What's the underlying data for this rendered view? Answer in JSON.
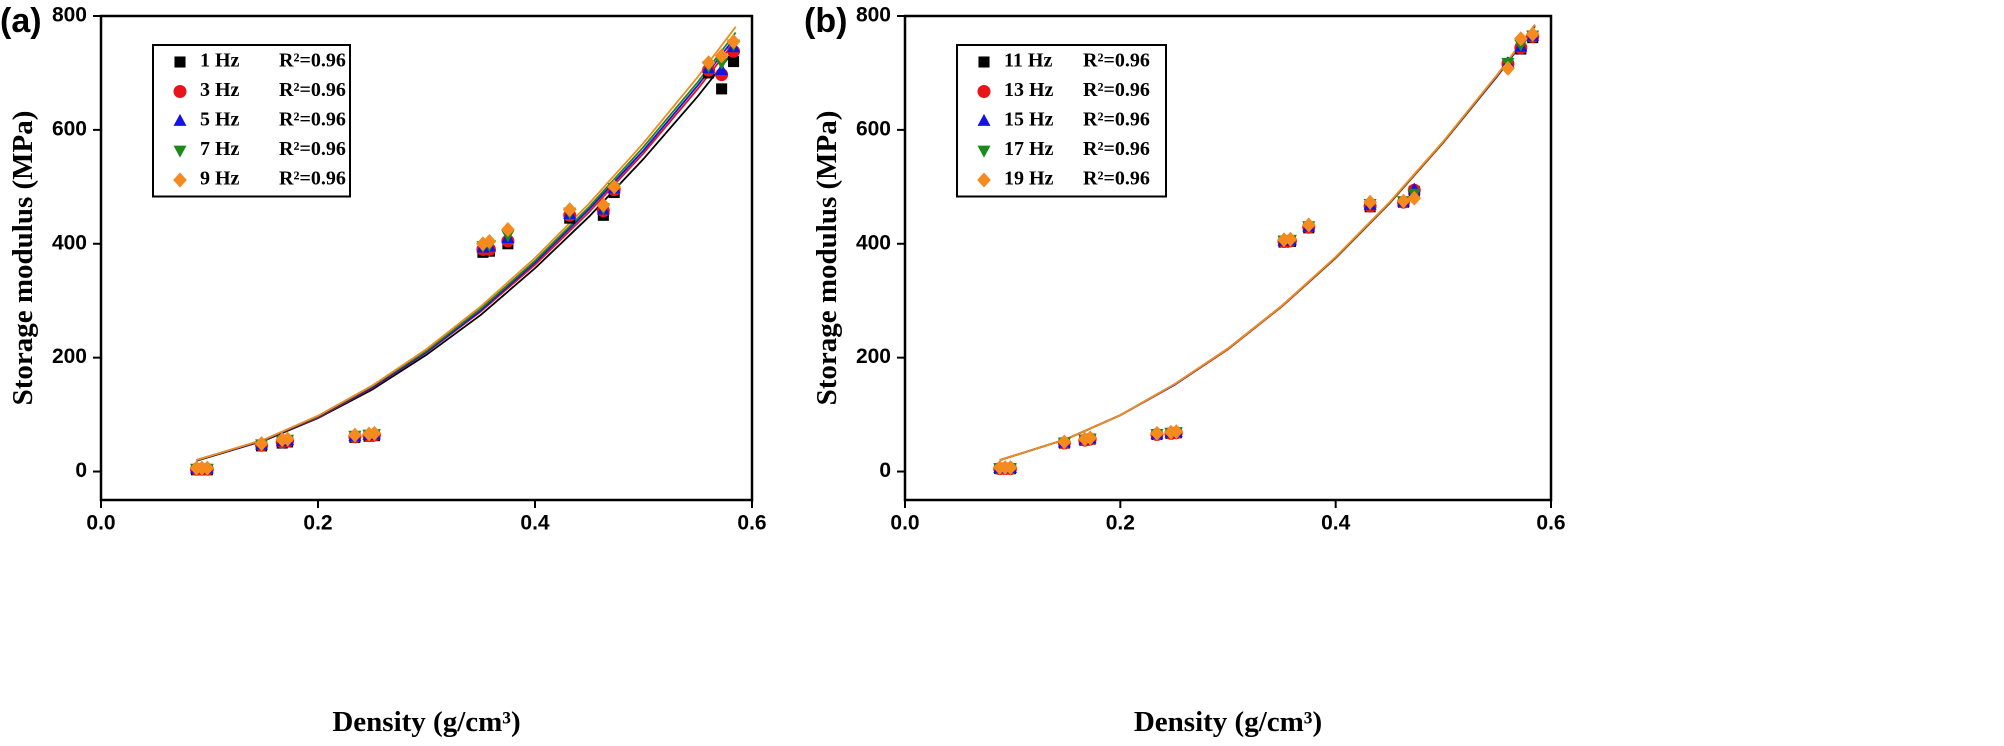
{
  "chart_data": [
    {
      "type": "scatter",
      "panel_label": "(a)",
      "x_label": "Density (g/cm³)",
      "y_label": "Storage modulus (MPa)",
      "xlim": [
        0,
        0.6
      ],
      "xticks": [
        {
          "value": 0,
          "label": "0.0"
        },
        0.2,
        0.4,
        0.6
      ],
      "ylim": [
        -50,
        800
      ],
      "yticks": [
        0,
        200,
        400,
        600,
        800
      ],
      "legend": "upper left",
      "x": [
        0.088,
        0.093,
        0.098,
        0.148,
        0.167,
        0.172,
        0.234,
        0.247,
        0.252,
        0.352,
        0.358,
        0.375,
        0.432,
        0.463,
        0.473,
        0.56,
        0.572,
        0.583
      ],
      "fit_x": [
        0.088,
        0.15,
        0.2,
        0.25,
        0.3,
        0.35,
        0.4,
        0.45,
        0.5,
        0.55,
        0.585
      ],
      "series": [
        {
          "name": "1 Hz",
          "fit_label": "R²=0.96",
          "color": "#000000",
          "marker": "square",
          "values": [
            3,
            3,
            3,
            45,
            50,
            52,
            60,
            62,
            63,
            385,
            387,
            400,
            445,
            450,
            490,
            700,
            672,
            720
          ],
          "fit_values": [
            19,
            54,
            94,
            144,
            205,
            275,
            357,
            448,
            549,
            659,
            743
          ]
        },
        {
          "name": "3 Hz",
          "fit_label": "R²=0.96",
          "color": "#e8141b",
          "marker": "circle",
          "values": [
            4,
            4,
            4,
            46,
            52,
            54,
            61,
            63,
            64,
            390,
            390,
            405,
            450,
            458,
            495,
            705,
            697,
            738
          ],
          "fit_values": [
            20,
            55,
            95,
            147,
            209,
            281,
            363,
            456,
            559,
            672,
            757
          ]
        },
        {
          "name": "5 Hz",
          "fit_label": "R²=0.96",
          "color": "#1414e6",
          "marker": "triangle-up",
          "values": [
            5,
            5,
            5,
            47,
            53,
            55,
            62,
            64,
            65,
            393,
            395,
            410,
            452,
            460,
            497,
            708,
            705,
            745
          ],
          "fit_values": [
            20,
            55,
            96,
            148,
            210,
            283,
            367,
            461,
            564,
            678,
            764
          ]
        },
        {
          "name": "7 Hz",
          "fit_label": "R²=0.96",
          "color": "#1a8a1a",
          "marker": "triangle-down",
          "values": [
            5,
            5,
            5,
            48,
            54,
            56,
            63,
            65,
            66,
            396,
            398,
            415,
            455,
            463,
            498,
            712,
            718,
            750
          ],
          "fit_values": [
            20,
            56,
            97,
            150,
            212,
            286,
            370,
            465,
            570,
            684,
            771
          ]
        },
        {
          "name": "9 Hz",
          "fit_label": "R²=0.96",
          "color": "#f58a1f",
          "marker": "diamond",
          "values": [
            6,
            6,
            6,
            49,
            56,
            57,
            64,
            66,
            67,
            400,
            404,
            425,
            460,
            468,
            500,
            718,
            730,
            755
          ],
          "fit_values": [
            20,
            56,
            98,
            151,
            215,
            290,
            375,
            471,
            577,
            693,
            781
          ]
        }
      ]
    },
    {
      "type": "scatter",
      "panel_label": "(b)",
      "x_label": "Density (g/cm³)",
      "y_label": "Storage modulus (MPa)",
      "xlim": [
        0,
        0.6
      ],
      "xticks": [
        {
          "value": 0,
          "label": "0.0"
        },
        0.2,
        0.4,
        0.6
      ],
      "ylim": [
        -50,
        800
      ],
      "yticks": [
        0,
        200,
        400,
        600,
        800
      ],
      "legend": "upper left",
      "x": [
        0.088,
        0.093,
        0.098,
        0.148,
        0.167,
        0.172,
        0.234,
        0.247,
        0.252,
        0.352,
        0.358,
        0.375,
        0.432,
        0.463,
        0.473,
        0.56,
        0.572,
        0.583
      ],
      "fit_x": [
        0.088,
        0.15,
        0.2,
        0.25,
        0.3,
        0.35,
        0.4,
        0.45,
        0.5,
        0.55,
        0.585
      ],
      "series": [
        {
          "name": "11 Hz",
          "fit_label": "R²=0.96",
          "color": "#000000",
          "marker": "square",
          "values": [
            5,
            5,
            5,
            50,
            55,
            57,
            65,
            67,
            68,
            403,
            404,
            428,
            465,
            473,
            492,
            715,
            742,
            762
          ],
          "fit_values": [
            20,
            57,
            99,
            152,
            215,
            290,
            375,
            471,
            578,
            694,
            782
          ]
        },
        {
          "name": "13 Hz",
          "fit_label": "R²=0.96",
          "color": "#e8141b",
          "marker": "circle",
          "values": [
            5,
            5,
            5,
            50,
            55,
            57,
            65,
            67,
            68,
            404,
            405,
            429,
            466,
            473,
            494,
            716,
            744,
            764
          ],
          "fit_values": [
            20,
            57,
            99,
            152,
            215,
            290,
            375,
            471,
            578,
            694,
            782
          ]
        },
        {
          "name": "15 Hz",
          "fit_label": "R²=0.96",
          "color": "#1414e6",
          "marker": "triangle-up",
          "values": [
            6,
            6,
            6,
            51,
            56,
            58,
            66,
            68,
            69,
            405,
            406,
            430,
            468,
            474,
            495,
            717,
            746,
            765
          ],
          "fit_values": [
            20,
            57,
            99,
            152,
            216,
            291,
            376,
            472,
            579,
            695,
            783
          ]
        },
        {
          "name": "17 Hz",
          "fit_label": "R²=0.96",
          "color": "#1a8a1a",
          "marker": "triangle-down",
          "values": [
            6,
            6,
            6,
            51,
            56,
            58,
            66,
            68,
            69,
            406,
            407,
            431,
            470,
            475,
            488,
            718,
            750,
            766
          ],
          "fit_values": [
            20,
            57,
            99,
            153,
            216,
            291,
            376,
            472,
            579,
            696,
            784
          ]
        },
        {
          "name": "19 Hz",
          "fit_label": "R²=0.96",
          "color": "#f58a1f",
          "marker": "diamond",
          "values": [
            7,
            7,
            7,
            52,
            57,
            59,
            67,
            69,
            70,
            407,
            408,
            433,
            473,
            475,
            480,
            708,
            760,
            768
          ],
          "fit_values": [
            20,
            57,
            99,
            153,
            216,
            291,
            377,
            473,
            580,
            697,
            785
          ]
        }
      ]
    }
  ]
}
